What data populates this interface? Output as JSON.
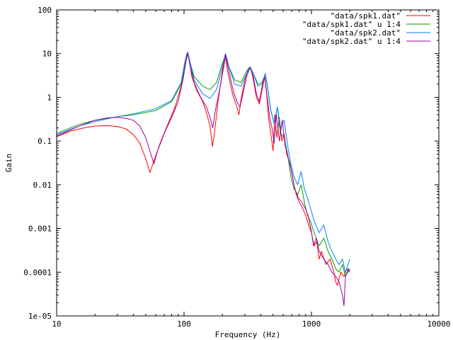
{
  "chart_data": {
    "type": "line",
    "title": "",
    "xlabel": "Frequency (Hz)",
    "ylabel": "Gain",
    "x_scale": "log",
    "y_scale": "log",
    "xlim": [
      10,
      10000
    ],
    "ylim": [
      1e-05,
      100
    ],
    "x_ticks": [
      {
        "value": 10,
        "label": "10"
      },
      {
        "value": 100,
        "label": "100"
      },
      {
        "value": 1000,
        "label": "1000"
      },
      {
        "value": 10000,
        "label": "10000"
      }
    ],
    "y_ticks": [
      {
        "value": 100,
        "label": "100"
      },
      {
        "value": 10,
        "label": "10"
      },
      {
        "value": 1,
        "label": "1"
      },
      {
        "value": 0.1,
        "label": "0.1"
      },
      {
        "value": 0.01,
        "label": "0.01"
      },
      {
        "value": 0.001,
        "label": "0.001"
      },
      {
        "value": 0.0001,
        "label": "0.0001"
      },
      {
        "value": 1e-05,
        "label": "1e-05"
      }
    ],
    "grid": false,
    "legend_position": "top-right",
    "series": [
      {
        "name": "\"data/spk1.dat\"",
        "color": "#ff0000",
        "points": [
          [
            10,
            0.125
          ],
          [
            13,
            0.17
          ],
          [
            17,
            0.205
          ],
          [
            20,
            0.22
          ],
          [
            25,
            0.225
          ],
          [
            30,
            0.215
          ],
          [
            35,
            0.19
          ],
          [
            40,
            0.14
          ],
          [
            45,
            0.09
          ],
          [
            50,
            0.04
          ],
          [
            54,
            0.019
          ],
          [
            58,
            0.035
          ],
          [
            65,
            0.09
          ],
          [
            75,
            0.25
          ],
          [
            85,
            0.6
          ],
          [
            95,
            1.8
          ],
          [
            100,
            4
          ],
          [
            104,
            9
          ],
          [
            107,
            11
          ],
          [
            110,
            7
          ],
          [
            115,
            3
          ],
          [
            125,
            1.5
          ],
          [
            140,
            0.8
          ],
          [
            150,
            0.45
          ],
          [
            160,
            0.22
          ],
          [
            167,
            0.075
          ],
          [
            173,
            0.15
          ],
          [
            185,
            0.8
          ],
          [
            200,
            4
          ],
          [
            210,
            9.5
          ],
          [
            220,
            4
          ],
          [
            240,
            1.2
          ],
          [
            260,
            0.6
          ],
          [
            270,
            0.4
          ],
          [
            280,
            0.9
          ],
          [
            300,
            2.5
          ],
          [
            320,
            4.6
          ],
          [
            335,
            4.5
          ],
          [
            350,
            2.5
          ],
          [
            370,
            1
          ],
          [
            390,
            0.7
          ],
          [
            410,
            1.5
          ],
          [
            430,
            3
          ],
          [
            445,
            1.2
          ],
          [
            460,
            0.35
          ],
          [
            480,
            0.15
          ],
          [
            500,
            0.06
          ],
          [
            515,
            0.4
          ],
          [
            535,
            0.12
          ],
          [
            560,
            0.35
          ],
          [
            585,
            0.1
          ],
          [
            610,
            0.15
          ],
          [
            640,
            0.05
          ],
          [
            680,
            0.03
          ],
          [
            720,
            0.012
          ],
          [
            760,
            0.006
          ],
          [
            800,
            0.004
          ],
          [
            850,
            0.003
          ],
          [
            900,
            0.002
          ],
          [
            950,
            0.0012
          ],
          [
            1000,
            0.0008
          ],
          [
            1050,
            0.0004
          ],
          [
            1100,
            0.0005
          ],
          [
            1150,
            0.0002
          ],
          [
            1200,
            0.0003
          ],
          [
            1300,
            0.00015
          ],
          [
            1400,
            0.0002
          ],
          [
            1500,
            0.0001
          ],
          [
            1550,
            6e-05
          ],
          [
            1600,
            5e-05
          ],
          [
            1700,
            0.0001
          ],
          [
            1800,
            8e-05
          ],
          [
            1900,
            0.00012
          ],
          [
            2000,
            0.0001
          ]
        ]
      },
      {
        "name": "\"data/spk1.dat\" u 1:4",
        "color": "#00a000",
        "points": [
          [
            10,
            0.15
          ],
          [
            15,
            0.24
          ],
          [
            20,
            0.3
          ],
          [
            30,
            0.36
          ],
          [
            40,
            0.4
          ],
          [
            60,
            0.5
          ],
          [
            80,
            0.8
          ],
          [
            95,
            2
          ],
          [
            102,
            6
          ],
          [
            107,
            10.5
          ],
          [
            112,
            6
          ],
          [
            120,
            3
          ],
          [
            140,
            1.8
          ],
          [
            160,
            1.5
          ],
          [
            180,
            2.2
          ],
          [
            200,
            6
          ],
          [
            212,
            9.5
          ],
          [
            225,
            5
          ],
          [
            250,
            2.5
          ],
          [
            280,
            2.2
          ],
          [
            310,
            4
          ],
          [
            330,
            5
          ],
          [
            350,
            3.5
          ],
          [
            380,
            2
          ],
          [
            410,
            2.2
          ],
          [
            435,
            3.5
          ],
          [
            455,
            1.5
          ],
          [
            480,
            0.5
          ],
          [
            510,
            0.25
          ],
          [
            540,
            0.6
          ],
          [
            570,
            0.15
          ],
          [
            610,
            0.12
          ],
          [
            650,
            0.05
          ],
          [
            690,
            0.015
          ],
          [
            730,
            0.008
          ],
          [
            780,
            0.006
          ],
          [
            830,
            0.01
          ],
          [
            880,
            0.004
          ],
          [
            930,
            0.002
          ],
          [
            980,
            0.0015
          ],
          [
            1050,
            0.0008
          ],
          [
            1150,
            0.0004
          ],
          [
            1250,
            0.0006
          ],
          [
            1350,
            0.0003
          ],
          [
            1450,
            0.0002
          ],
          [
            1550,
            0.00012
          ],
          [
            1650,
            0.0001
          ],
          [
            1750,
            0.00015
          ],
          [
            1850,
            8e-05
          ],
          [
            2000,
            0.00012
          ]
        ]
      },
      {
        "name": "\"data/spk2.dat\"",
        "color": "#0080ff",
        "points": [
          [
            10,
            0.14
          ],
          [
            15,
            0.22
          ],
          [
            20,
            0.28
          ],
          [
            30,
            0.36
          ],
          [
            40,
            0.42
          ],
          [
            60,
            0.55
          ],
          [
            80,
            0.85
          ],
          [
            95,
            2.2
          ],
          [
            102,
            7
          ],
          [
            107,
            11
          ],
          [
            112,
            6
          ],
          [
            120,
            2.5
          ],
          [
            140,
            1.2
          ],
          [
            160,
            0.95
          ],
          [
            180,
            1.5
          ],
          [
            200,
            5
          ],
          [
            212,
            10
          ],
          [
            225,
            5
          ],
          [
            250,
            2
          ],
          [
            280,
            1.8
          ],
          [
            310,
            3.5
          ],
          [
            330,
            5
          ],
          [
            350,
            3.5
          ],
          [
            380,
            1.8
          ],
          [
            410,
            2
          ],
          [
            435,
            3.5
          ],
          [
            455,
            1.5
          ],
          [
            480,
            0.5
          ],
          [
            510,
            0.25
          ],
          [
            540,
            0.6
          ],
          [
            570,
            0.2
          ],
          [
            610,
            0.3
          ],
          [
            650,
            0.08
          ],
          [
            690,
            0.03
          ],
          [
            730,
            0.015
          ],
          [
            780,
            0.01
          ],
          [
            830,
            0.02
          ],
          [
            880,
            0.008
          ],
          [
            930,
            0.005
          ],
          [
            980,
            0.003
          ],
          [
            1050,
            0.0015
          ],
          [
            1150,
            0.0008
          ],
          [
            1250,
            0.0012
          ],
          [
            1350,
            0.0005
          ],
          [
            1450,
            0.0003
          ],
          [
            1550,
            0.0002
          ],
          [
            1650,
            0.00015
          ],
          [
            1750,
            0.0002
          ],
          [
            1850,
            0.0001
          ],
          [
            2000,
            0.0002
          ]
        ]
      },
      {
        "name": "\"data/spk2.dat\" u 1:4",
        "color": "#a000a0",
        "points": [
          [
            10,
            0.13
          ],
          [
            15,
            0.22
          ],
          [
            20,
            0.3
          ],
          [
            25,
            0.34
          ],
          [
            30,
            0.35
          ],
          [
            35,
            0.33
          ],
          [
            40,
            0.3
          ],
          [
            45,
            0.22
          ],
          [
            50,
            0.12
          ],
          [
            55,
            0.05
          ],
          [
            58,
            0.03
          ],
          [
            62,
            0.06
          ],
          [
            70,
            0.15
          ],
          [
            80,
            0.35
          ],
          [
            90,
            0.8
          ],
          [
            98,
            2.5
          ],
          [
            104,
            7
          ],
          [
            107,
            10
          ],
          [
            112,
            5
          ],
          [
            120,
            2.2
          ],
          [
            135,
            1
          ],
          [
            150,
            0.6
          ],
          [
            160,
            0.35
          ],
          [
            168,
            0.2
          ],
          [
            175,
            0.45
          ],
          [
            190,
            1.5
          ],
          [
            205,
            5
          ],
          [
            212,
            9
          ],
          [
            225,
            4
          ],
          [
            245,
            1.3
          ],
          [
            260,
            0.8
          ],
          [
            275,
            0.6
          ],
          [
            290,
            1.2
          ],
          [
            310,
            3
          ],
          [
            330,
            4.8
          ],
          [
            350,
            3
          ],
          [
            370,
            1.2
          ],
          [
            390,
            0.8
          ],
          [
            410,
            1.8
          ],
          [
            430,
            3
          ],
          [
            450,
            1
          ],
          [
            470,
            0.35
          ],
          [
            490,
            0.2
          ],
          [
            510,
            0.09
          ],
          [
            530,
            0.4
          ],
          [
            560,
            0.1
          ],
          [
            590,
            0.3
          ],
          [
            620,
            0.08
          ],
          [
            660,
            0.04
          ],
          [
            700,
            0.02
          ],
          [
            740,
            0.008
          ],
          [
            790,
            0.005
          ],
          [
            840,
            0.004
          ],
          [
            890,
            0.003
          ],
          [
            940,
            0.002
          ],
          [
            990,
            0.001
          ],
          [
            1040,
            0.0004
          ],
          [
            1090,
            0.0006
          ],
          [
            1150,
            0.0003
          ],
          [
            1250,
            0.0002
          ],
          [
            1350,
            0.00015
          ],
          [
            1450,
            0.0001
          ],
          [
            1550,
            8e-05
          ],
          [
            1650,
            6e-05
          ],
          [
            1750,
            3e-05
          ],
          [
            1800,
            1.7e-05
          ],
          [
            1850,
            8e-05
          ],
          [
            1950,
            0.00012
          ],
          [
            2000,
            0.0001
          ]
        ]
      }
    ]
  }
}
